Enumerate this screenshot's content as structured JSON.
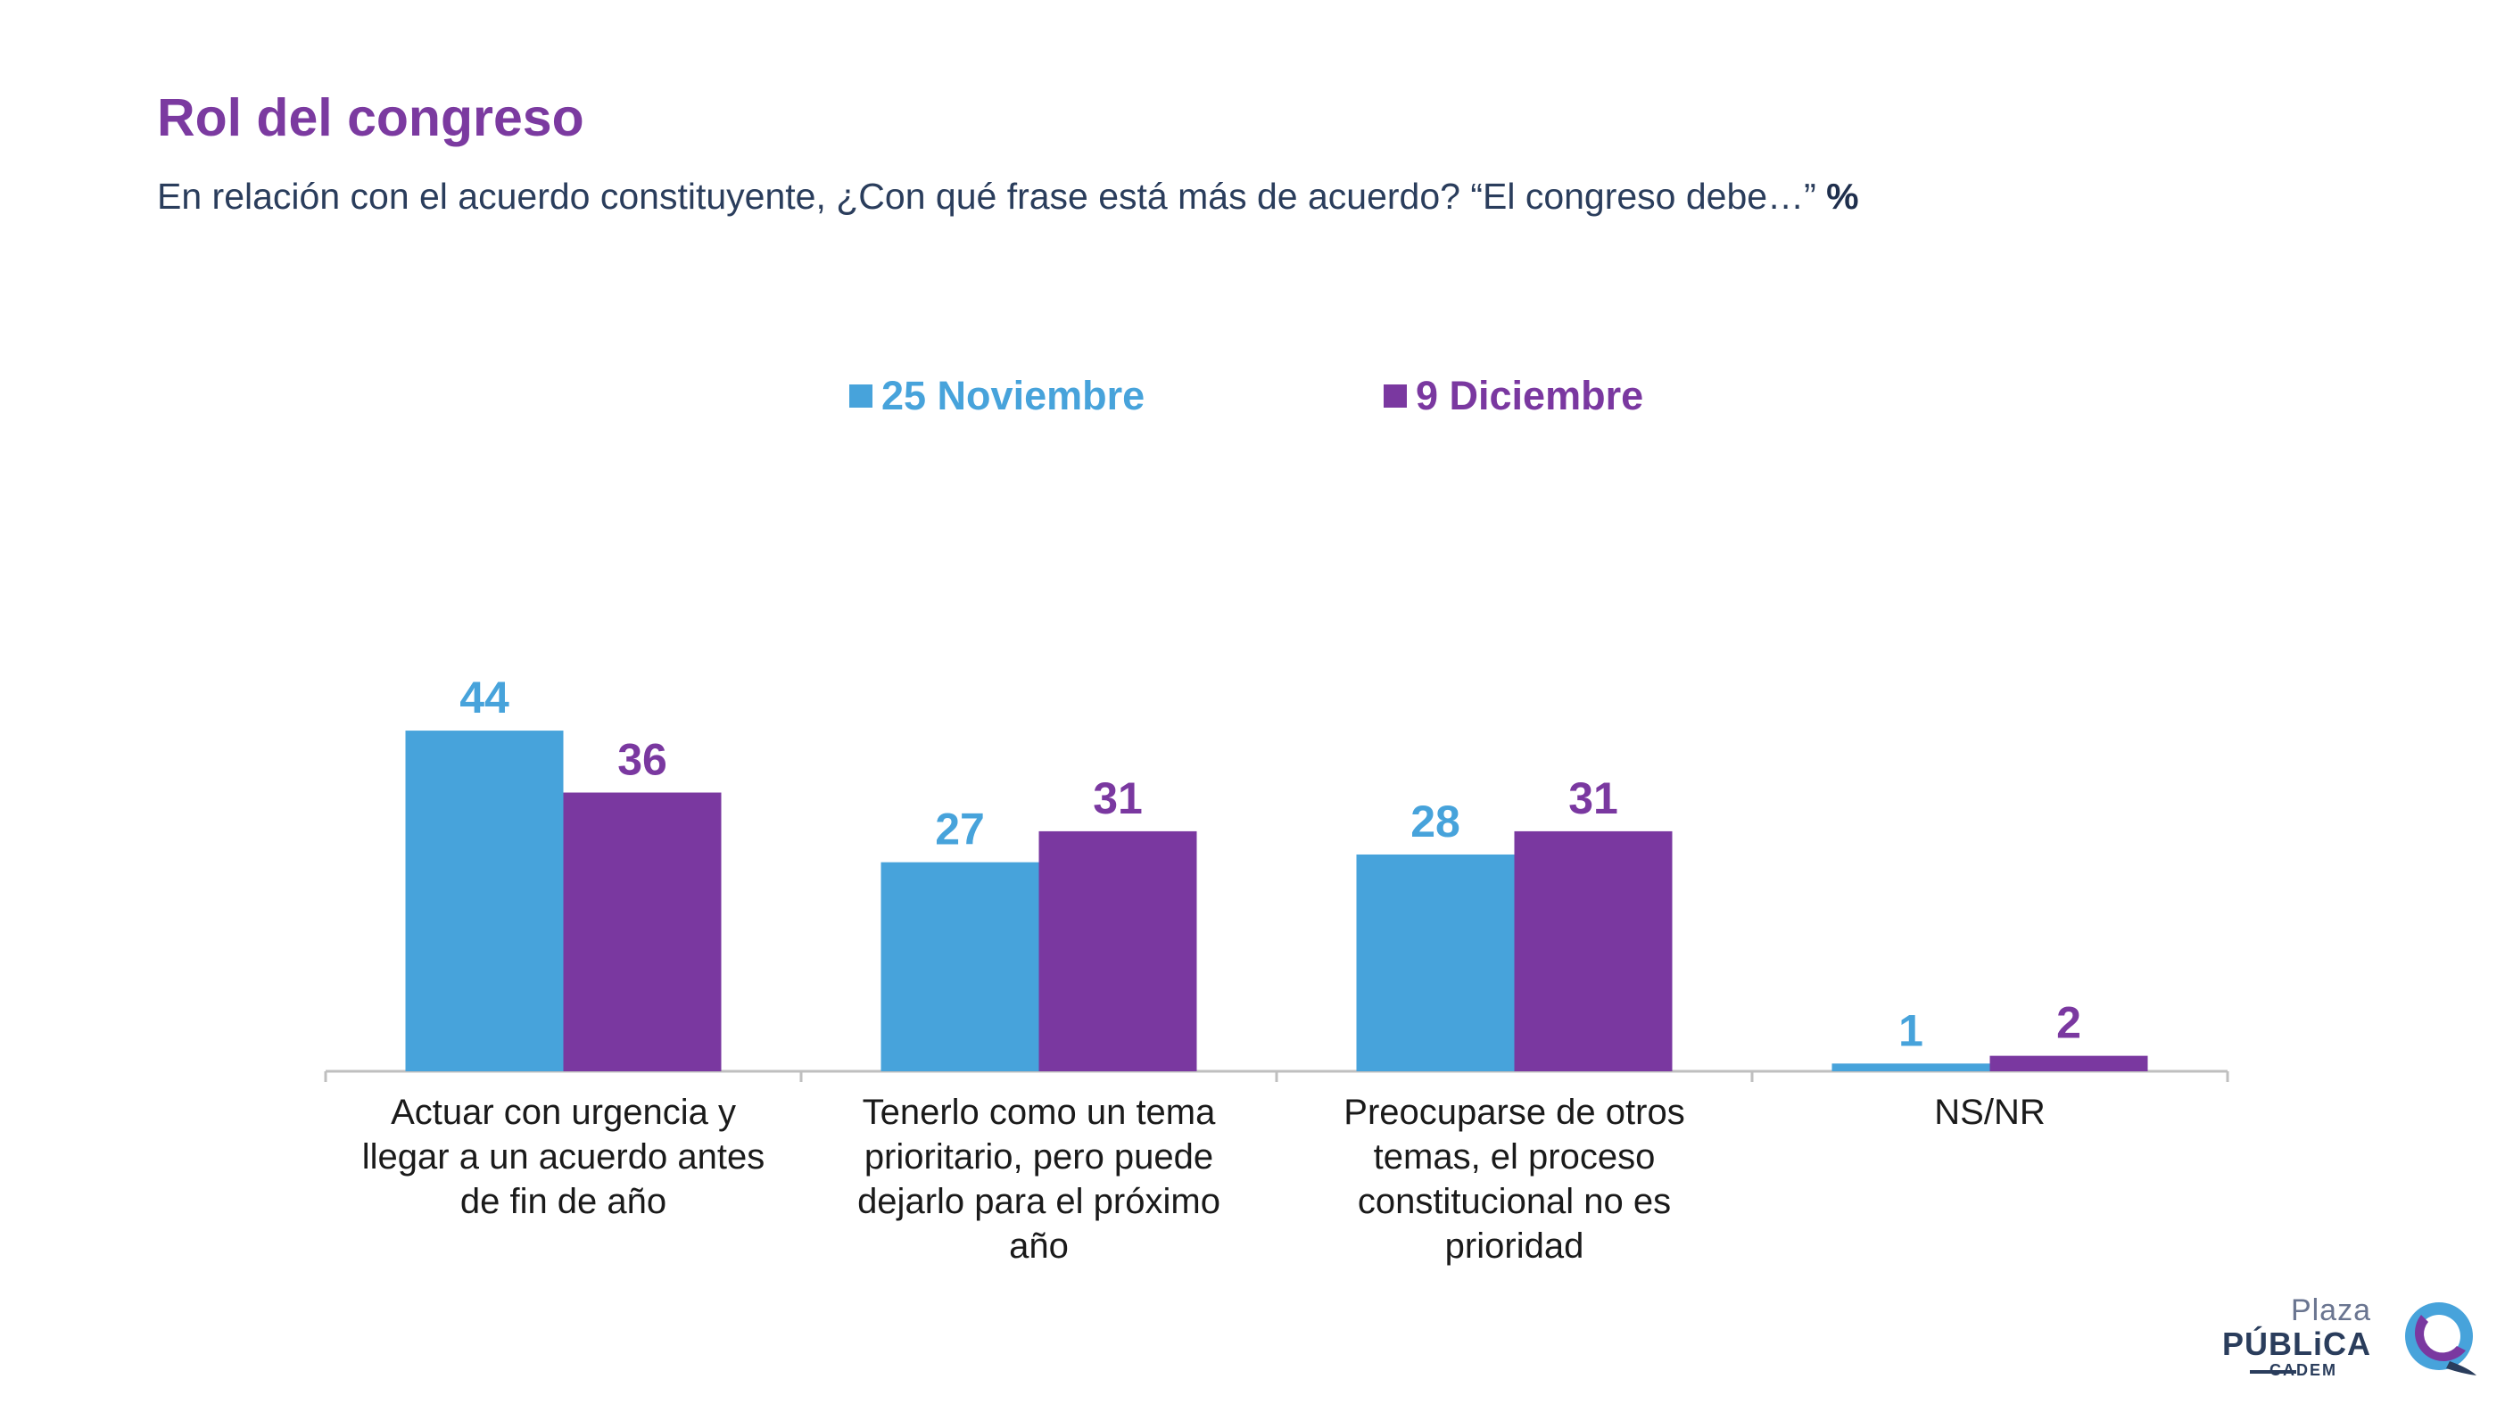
{
  "header": {
    "title": "Rol del congreso",
    "subtitle": "En relación con el acuerdo constituyente, ¿Con qué frase está más de acuerdo? “El congreso debe…”",
    "unit": "%"
  },
  "chart_data": {
    "type": "bar",
    "title": "",
    "xlabel": "",
    "ylabel": "",
    "ylim": [
      0,
      44
    ],
    "grid": false,
    "legend_position": "top-center",
    "categories": [
      "Actuar con urgencia y llegar a un acuerdo antes de fin de año",
      "Tenerlo como un tema prioritario, pero puede dejarlo para el próximo año",
      "Preocuparse de otros temas, el proceso constitucional no es prioridad",
      "NS/NR"
    ],
    "category_lines": [
      [
        "Actuar con urgencia y",
        "llegar a un acuerdo antes",
        "de fin de año"
      ],
      [
        "Tenerlo como un tema",
        "prioritario, pero puede",
        "dejarlo para el próximo",
        "año"
      ],
      [
        "Preocuparse de otros",
        "temas, el proceso",
        "constitucional no es",
        "prioridad"
      ],
      [
        "NS/NR"
      ]
    ],
    "series": [
      {
        "name": "25 Noviembre",
        "color": "#47a3db",
        "values": [
          44,
          27,
          28,
          1
        ]
      },
      {
        "name": "9 Diciembre",
        "color": "#7a38a0",
        "values": [
          36,
          31,
          31,
          2
        ]
      }
    ]
  },
  "brand": {
    "logo_line1": "Plaza",
    "logo_line2": "PÚBLiCA",
    "logo_line3": "CADEM",
    "icon": "plaza-publica-logo-icon"
  }
}
